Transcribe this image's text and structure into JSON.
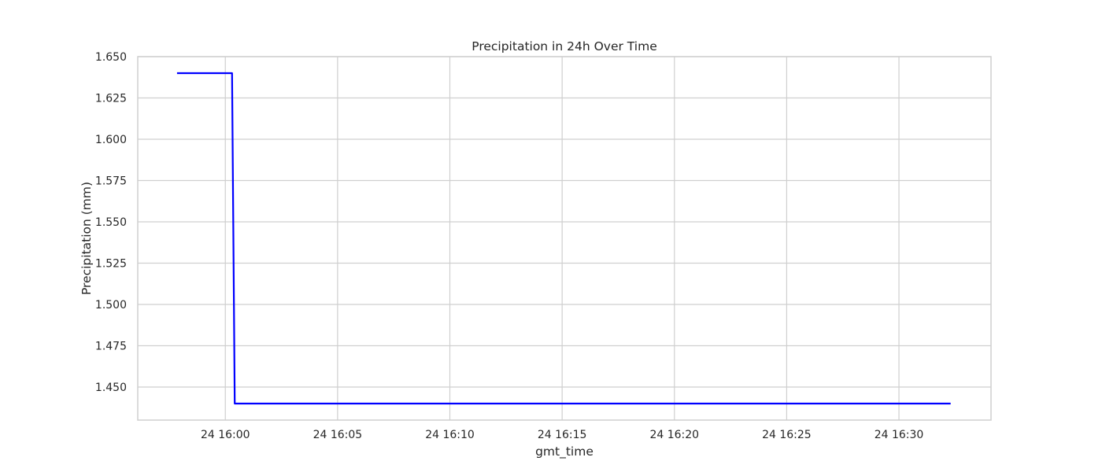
{
  "chart_data": {
    "type": "line",
    "title": "Precipitation in 24h Over Time",
    "xlabel": "gmt_time",
    "ylabel": "Precipitation (mm)",
    "x_tick_labels": [
      "24 16:00",
      "24 16:05",
      "24 16:10",
      "24 16:15",
      "24 16:20",
      "24 16:25",
      "24 16:30"
    ],
    "x_ticks_minutes": [
      0,
      5,
      10,
      15,
      20,
      25,
      30
    ],
    "y_tick_labels": [
      "1.650",
      "1.625",
      "1.600",
      "1.575",
      "1.550",
      "1.525",
      "1.500",
      "1.475",
      "1.450"
    ],
    "y_ticks": [
      1.65,
      1.625,
      1.6,
      1.575,
      1.55,
      1.525,
      1.5,
      1.475,
      1.45
    ],
    "xlim_minutes": [
      -3.9,
      34.1
    ],
    "ylim": [
      1.43,
      1.65
    ],
    "grid": true,
    "line_color": "#0000ff",
    "series": [
      {
        "x_minutes": [
          -2.15,
          0.3,
          0.42,
          32.3
        ],
        "values": [
          1.64,
          1.64,
          1.44,
          1.44
        ]
      }
    ]
  }
}
